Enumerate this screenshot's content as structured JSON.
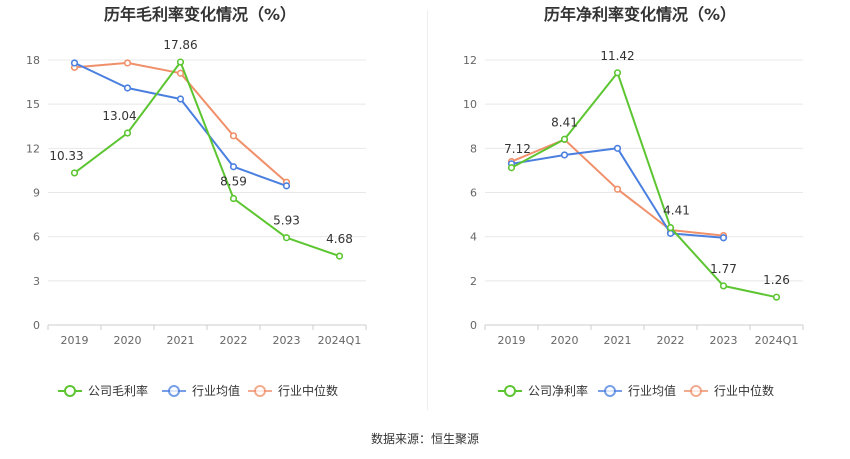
{
  "footer": {
    "source": "数据来源：恒生聚源"
  },
  "colors": {
    "company": "#5cc531",
    "avg": "#4a7fe0",
    "median": "#f0906a",
    "grid": "#e8e8e8",
    "axis": "#999999"
  },
  "chart_data": [
    {
      "type": "line",
      "title": "历年毛利率变化情况（%）",
      "categories": [
        "2019",
        "2020",
        "2021",
        "2022",
        "2023",
        "2024Q1"
      ],
      "ylim": [
        0,
        18
      ],
      "yticks": [
        0,
        3,
        6,
        9,
        12,
        15,
        18
      ],
      "series": [
        {
          "name": "公司毛利率",
          "key": "company",
          "values": [
            10.33,
            13.04,
            17.86,
            8.59,
            5.93,
            4.68
          ],
          "labels": [
            "10.33",
            "13.04",
            "17.86",
            "8.59",
            "5.93",
            "4.68"
          ]
        },
        {
          "name": "行业均值",
          "key": "avg",
          "values": [
            17.8,
            16.1,
            15.35,
            10.75,
            9.45,
            null
          ]
        },
        {
          "name": "行业中位数",
          "key": "median",
          "values": [
            17.5,
            17.8,
            17.1,
            12.85,
            9.7,
            null
          ]
        }
      ]
    },
    {
      "type": "line",
      "title": "历年净利率变化情况（%）",
      "categories": [
        "2019",
        "2020",
        "2021",
        "2022",
        "2023",
        "2024Q1"
      ],
      "ylim": [
        0,
        12
      ],
      "yticks": [
        0,
        2,
        4,
        6,
        8,
        10,
        12
      ],
      "series": [
        {
          "name": "公司净利率",
          "key": "company",
          "values": [
            7.12,
            8.41,
            11.42,
            4.41,
            1.77,
            1.26
          ],
          "labels": [
            "7.12",
            "8.41",
            "11.42",
            "4.41",
            "1.77",
            "1.26"
          ]
        },
        {
          "name": "行业均值",
          "key": "avg",
          "values": [
            7.3,
            7.7,
            8.0,
            4.15,
            3.95,
            null
          ]
        },
        {
          "name": "行业中位数",
          "key": "median",
          "values": [
            7.4,
            8.4,
            6.15,
            4.3,
            4.05,
            null
          ]
        }
      ]
    }
  ]
}
